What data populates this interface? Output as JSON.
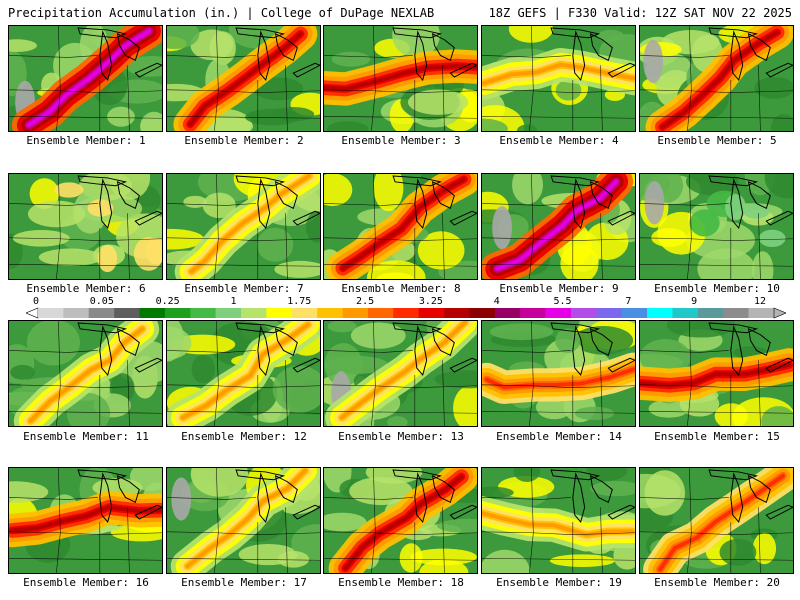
{
  "header": {
    "title_left": "Precipitation Accumulation (in.) | College of DuPage NEXLAB",
    "title_right": "18Z GEFS | F330 Valid: 12Z SAT NOV 22 2025"
  },
  "map": {
    "product": "Precipitation Accumulation",
    "units": "in."
  },
  "members": [
    {
      "label": "Ensemble Member: 1",
      "dominant": "magenta",
      "band": "sw-ne"
    },
    {
      "label": "Ensemble Member: 2",
      "dominant": "red",
      "band": "sw-ne"
    },
    {
      "label": "Ensemble Member: 3",
      "dominant": "red",
      "band": "w-e"
    },
    {
      "label": "Ensemble Member: 4",
      "dominant": "yellow",
      "band": "w-e"
    },
    {
      "label": "Ensemble Member: 5",
      "dominant": "red",
      "band": "sw-ne"
    },
    {
      "label": "Ensemble Member: 6",
      "dominant": "yellow",
      "band": "none"
    },
    {
      "label": "Ensemble Member: 7",
      "dominant": "yellow",
      "band": "sw-ne"
    },
    {
      "label": "Ensemble Member: 8",
      "dominant": "red",
      "band": "sw-ne"
    },
    {
      "label": "Ensemble Member: 9",
      "dominant": "magenta",
      "band": "sw-ne"
    },
    {
      "label": "Ensemble Member: 10",
      "dominant": "green",
      "band": "none"
    },
    {
      "label": "Ensemble Member: 11",
      "dominant": "yellow",
      "band": "sw-ne"
    },
    {
      "label": "Ensemble Member: 12",
      "dominant": "yellow",
      "band": "sw-ne"
    },
    {
      "label": "Ensemble Member: 13",
      "dominant": "yellow",
      "band": "sw-ne"
    },
    {
      "label": "Ensemble Member: 14",
      "dominant": "orange",
      "band": "w-e"
    },
    {
      "label": "Ensemble Member: 15",
      "dominant": "red",
      "band": "w-e"
    },
    {
      "label": "Ensemble Member: 16",
      "dominant": "red",
      "band": "w-e"
    },
    {
      "label": "Ensemble Member: 17",
      "dominant": "yellow",
      "band": "sw-ne"
    },
    {
      "label": "Ensemble Member: 18",
      "dominant": "red",
      "band": "sw-ne"
    },
    {
      "label": "Ensemble Member: 19",
      "dominant": "yellow",
      "band": "w-e"
    },
    {
      "label": "Ensemble Member: 20",
      "dominant": "orange",
      "band": "sw-ne"
    }
  ],
  "colorbar": {
    "tick_labels": [
      "0",
      "0.05",
      "0.25",
      "1",
      "1.75",
      "2.5",
      "3.25",
      "4",
      "5.5",
      "7",
      "9",
      "12"
    ],
    "colors": [
      "#d8d8d8",
      "#bdbdbd",
      "#8a8a8a",
      "#5e5e5e",
      "#007a00",
      "#1ea01e",
      "#44b944",
      "#7ed07e",
      "#b6e36a",
      "#ffff00",
      "#ffe066",
      "#ffc000",
      "#ff9900",
      "#ff6600",
      "#ff2a00",
      "#e60000",
      "#b40000",
      "#8c0000",
      "#960064",
      "#c8009b",
      "#e600e6",
      "#b34de6",
      "#7b68ee",
      "#4a90e2",
      "#00ffff",
      "#20c8c8",
      "#5a9a9a",
      "#8c8c8c",
      "#b4b4b4"
    ]
  }
}
